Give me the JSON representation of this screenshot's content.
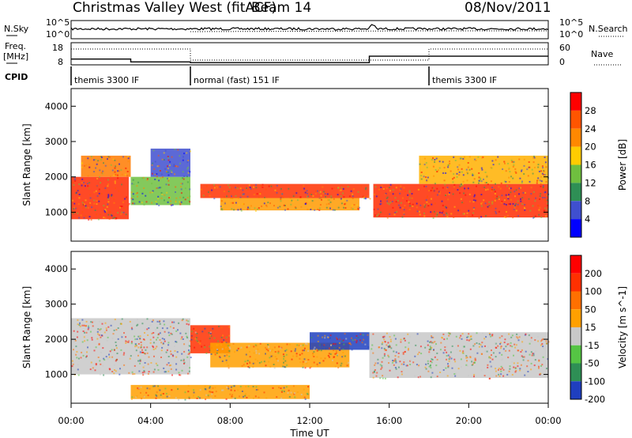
{
  "header": {
    "title": "Christmas Valley West (fitACF)",
    "beam": "Beam 14",
    "date": "08/Nov/2011"
  },
  "strip_labels": {
    "nsky": "N.Sky",
    "nsearch": "N.Search",
    "freq": "Freq.",
    "freq_unit": "[MHz]",
    "nave": "Nave",
    "cpid": "CPID"
  },
  "strip_axes": {
    "noise_left_top": "10^5",
    "noise_left_bottom": "10^0",
    "noise_right_top": "10^5",
    "noise_right_bottom": "10^0",
    "freq_left_top": "18",
    "freq_left_bottom": "8",
    "nave_right_top": "60",
    "nave_right_bottom": "0"
  },
  "cpid_segments": [
    {
      "label": "themis 3300 IF",
      "start_h": 0,
      "end_h": 6
    },
    {
      "label": "normal (fast) 151 IF",
      "start_h": 6,
      "end_h": 18
    },
    {
      "label": "themis 3300 IF",
      "start_h": 18,
      "end_h": 24
    }
  ],
  "chart_data": [
    {
      "type": "heatmap",
      "quantity": "Power",
      "ylabel": "Slant Range [km]",
      "xlabel": "Time UT",
      "colorbar_label": "Power [dB]",
      "colorbar_ticks": [
        "4",
        "8",
        "12",
        "16",
        "20",
        "24",
        "28"
      ],
      "colorbar_colors": [
        "#0000ff",
        "#3f4fcf",
        "#2e8f55",
        "#6fbf3f",
        "#ffcc00",
        "#ff8800",
        "#ff5500",
        "#ff0000"
      ],
      "xlim": [
        0,
        24
      ],
      "ylim": [
        180,
        4500
      ],
      "yticks": [
        1000,
        2000,
        3000,
        4000
      ],
      "xticks": [
        "00:00",
        "04:00",
        "08:00",
        "12:00",
        "16:00",
        "20:00",
        "00:00"
      ],
      "bands": [
        {
          "h": [
            0.0,
            2.9
          ],
          "r": [
            [
              800,
              2000
            ]
          ],
          "c": "#ff2a00"
        },
        {
          "h": [
            0.5,
            3.0
          ],
          "r": [
            [
              2000,
              2600
            ]
          ],
          "c": "#ff7a00"
        },
        {
          "h": [
            3.0,
            6.0
          ],
          "r": [
            [
              1200,
              2000
            ]
          ],
          "c": "#6fbf3f"
        },
        {
          "h": [
            4.0,
            6.0
          ],
          "r": [
            [
              2000,
              2800
            ]
          ],
          "c": "#3f4fcf"
        },
        {
          "h": [
            6.5,
            15.0
          ],
          "r": [
            [
              1400,
              1800
            ]
          ],
          "c": "#ff3000"
        },
        {
          "h": [
            7.5,
            14.5
          ],
          "r": [
            [
              1050,
              1400
            ]
          ],
          "c": "#ff9a00"
        },
        {
          "h": [
            15.2,
            24.0
          ],
          "r": [
            [
              850,
              1800
            ]
          ],
          "c": "#ff2a00"
        },
        {
          "h": [
            17.5,
            24.0
          ],
          "r": [
            [
              1800,
              2600
            ]
          ],
          "c": "#ffb000"
        }
      ]
    },
    {
      "type": "heatmap",
      "quantity": "Velocity",
      "ylabel": "Slant Range [km]",
      "xlabel": "Time UT",
      "colorbar_label": "Velocity [m s^-1]",
      "colorbar_ticks": [
        "200",
        "100",
        "50",
        "15",
        "-15",
        "-50",
        "-100",
        "-200"
      ],
      "colorbar_colors": [
        "#1f3fbf",
        "#2e8f55",
        "#55c544",
        "#c8c8c8",
        "#ffa000",
        "#ff7000",
        "#ff3000",
        "#ff0000"
      ],
      "xlim": [
        0,
        24
      ],
      "ylim": [
        180,
        4500
      ],
      "yticks": [
        1000,
        2000,
        3000,
        4000
      ],
      "xticks": [
        "00:00",
        "04:00",
        "08:00",
        "12:00",
        "16:00",
        "20:00",
        "00:00"
      ],
      "bands": [
        {
          "h": [
            0.0,
            6.0
          ],
          "r": [
            [
              1000,
              2600
            ]
          ],
          "c": "#c8c8c8"
        },
        {
          "h": [
            6.0,
            8.0
          ],
          "r": [
            [
              1600,
              2400
            ]
          ],
          "c": "#ff3000"
        },
        {
          "h": [
            7.0,
            14.0
          ],
          "r": [
            [
              1200,
              1900
            ]
          ],
          "c": "#ffa000"
        },
        {
          "h": [
            12.0,
            15.0
          ],
          "r": [
            [
              1700,
              2200
            ]
          ],
          "c": "#1f3fbf"
        },
        {
          "h": [
            15.0,
            24.0
          ],
          "r": [
            [
              900,
              2200
            ]
          ],
          "c": "#c8c8c8"
        },
        {
          "h": [
            3.0,
            12.0
          ],
          "r": [
            [
              300,
              700
            ]
          ],
          "c": "#ffa000"
        }
      ]
    }
  ]
}
